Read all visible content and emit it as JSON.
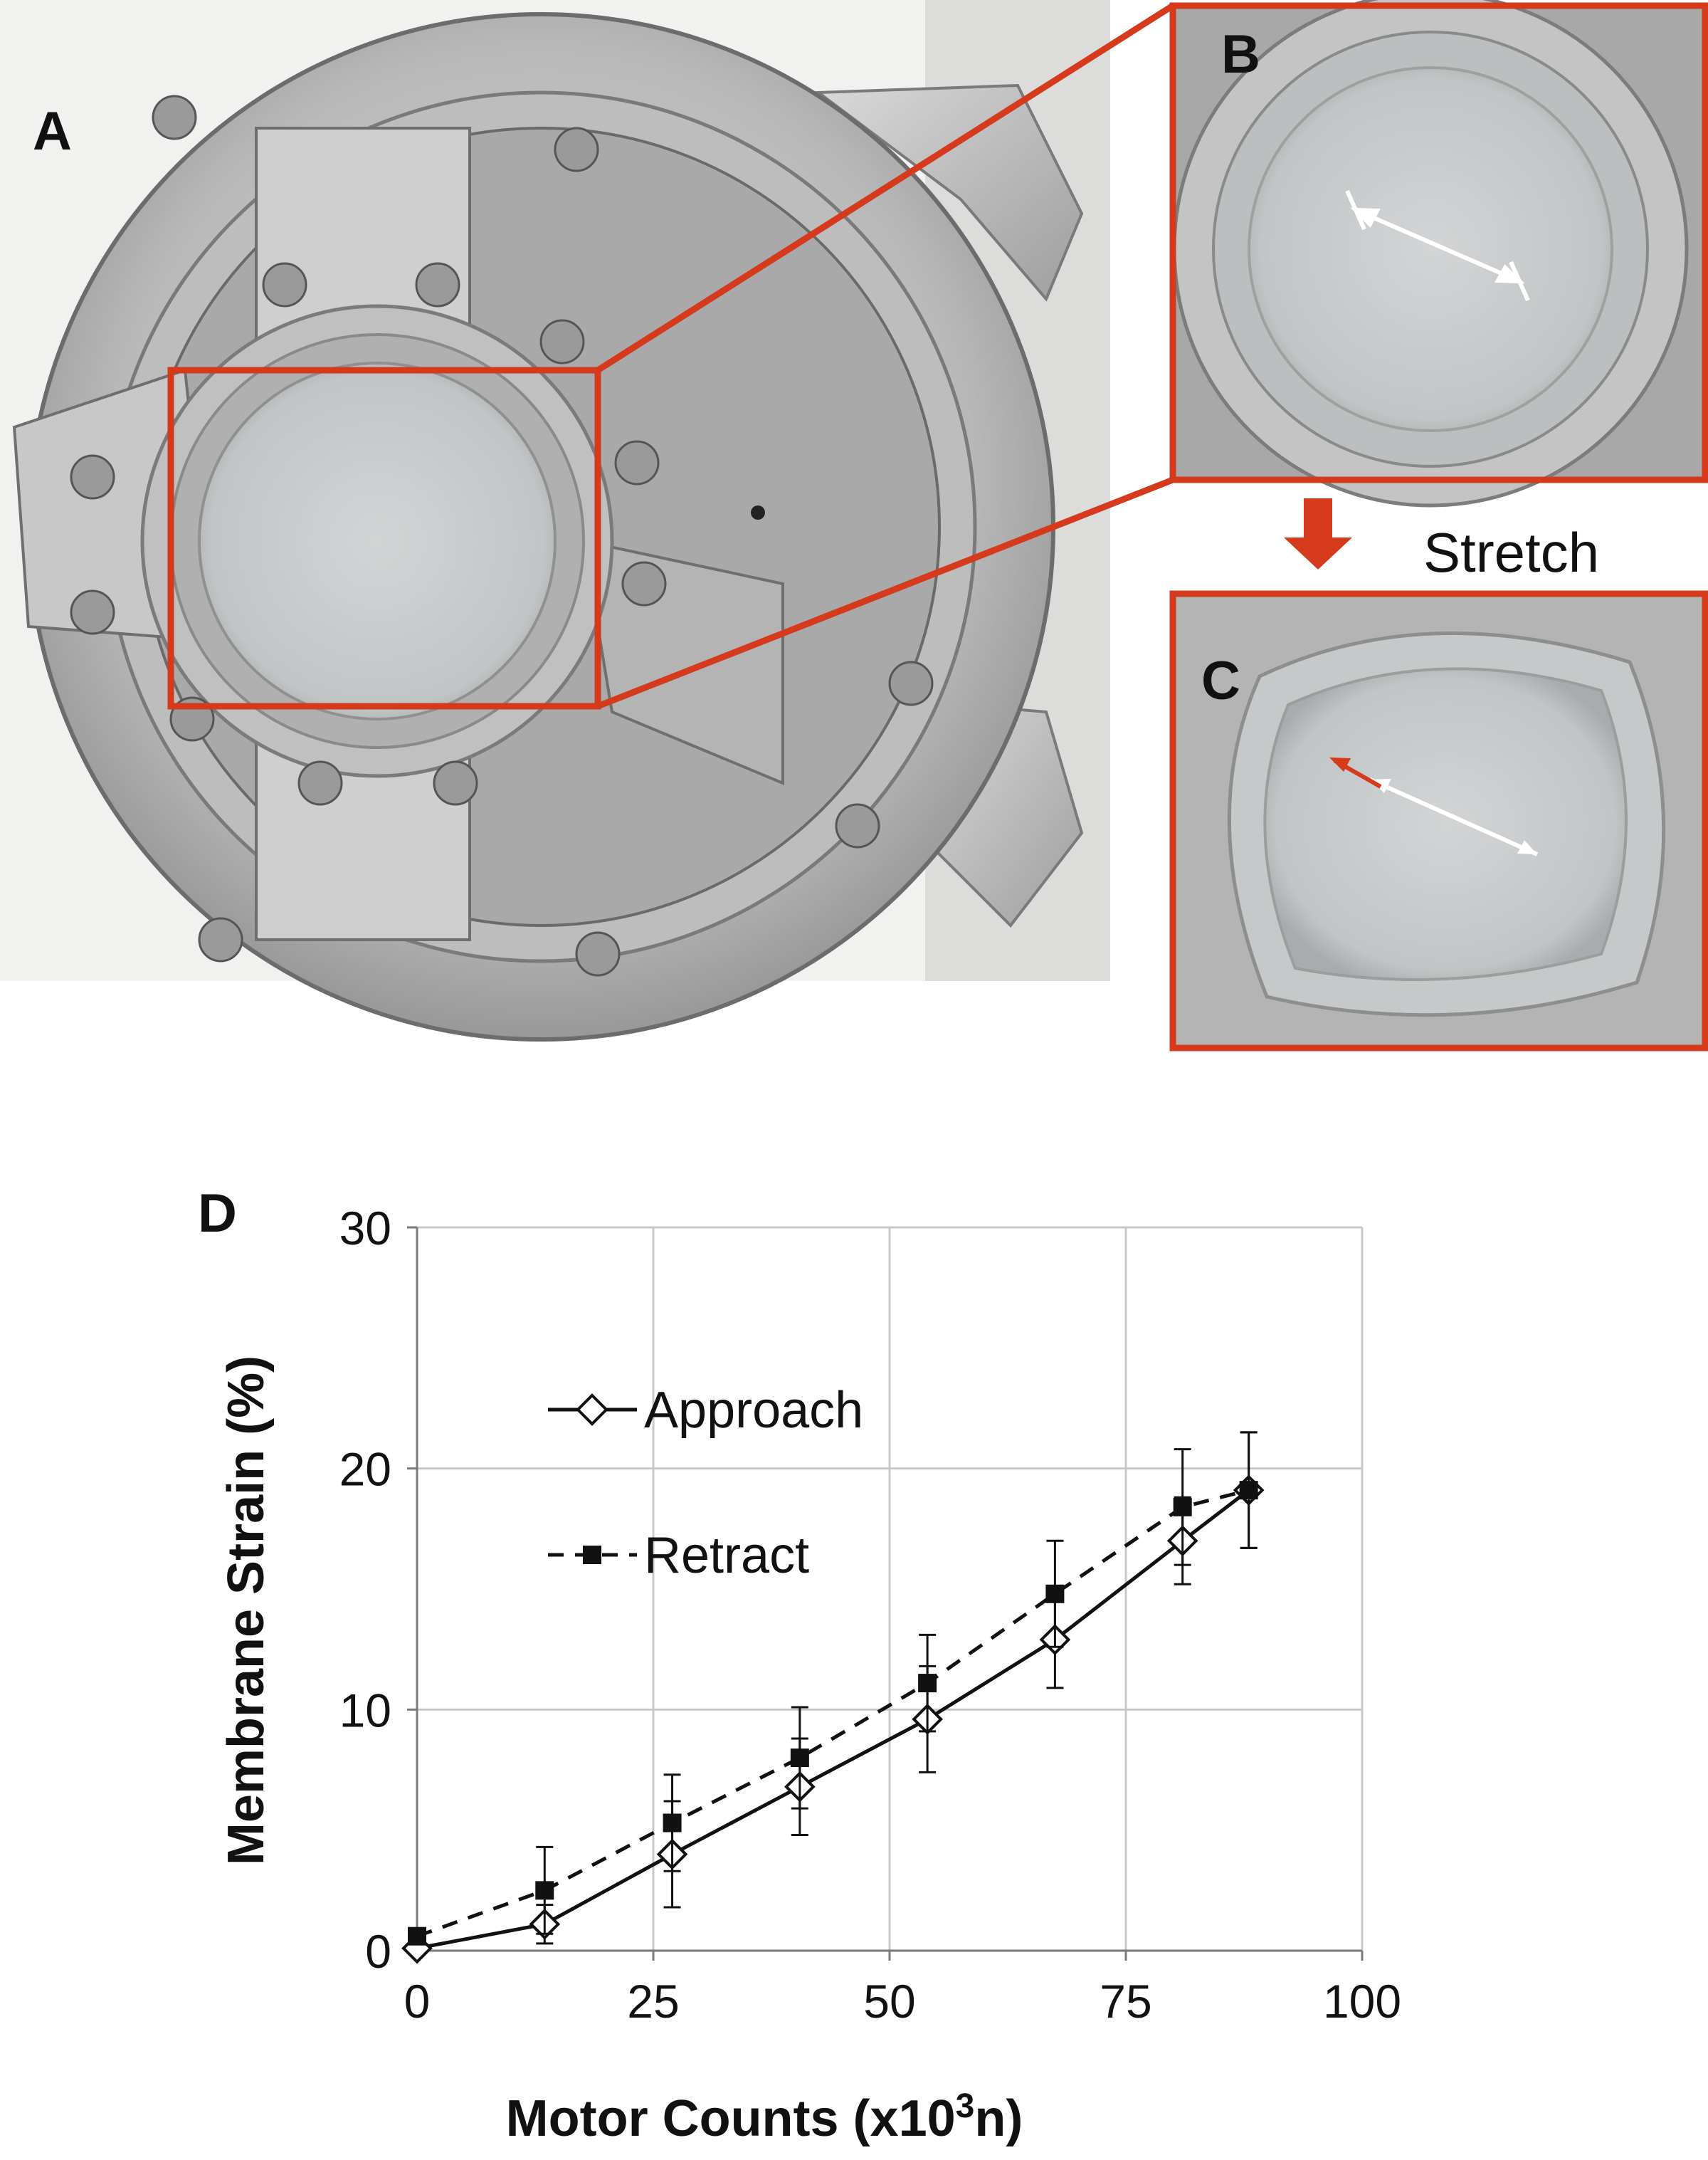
{
  "panels": {
    "a_label": "A",
    "b_label": "B",
    "c_label": "C",
    "d_label": "D",
    "stretch_label": "Stretch"
  },
  "colors": {
    "highlight": "#d63a1c",
    "steel_dark": "#6f6f6f",
    "steel_light": "#c9c9c9",
    "membrane": "#c7cacb"
  },
  "chart_data": {
    "type": "line",
    "xlabel_main": "Motor Counts (x10",
    "xlabel_sup": "3",
    "xlabel_tail": "n)",
    "ylabel": "Membrane Strain (%)",
    "xlim": [
      0,
      100
    ],
    "ylim": [
      0,
      30
    ],
    "x_ticks": [
      0,
      25,
      50,
      75,
      100
    ],
    "y_ticks": [
      0,
      10,
      20,
      30
    ],
    "x_tick_labels": [
      "0",
      "25",
      "50",
      "75",
      "100"
    ],
    "y_tick_labels": [
      "0",
      "10",
      "20",
      "30"
    ],
    "grid": true,
    "legend": "upper-left",
    "series": [
      {
        "name": "Approach",
        "style": "solid",
        "marker": "open-diamond",
        "x": [
          0,
          13.5,
          27,
          40.5,
          54,
          67.5,
          81,
          88
        ],
        "y": [
          0.1,
          1.1,
          4.0,
          6.8,
          9.6,
          12.9,
          17.0,
          19.1
        ],
        "err": [
          0,
          0.8,
          2.2,
          2.0,
          2.2,
          2.0,
          1.8,
          2.4
        ]
      },
      {
        "name": "Retract",
        "style": "dashed",
        "marker": "filled-square",
        "x": [
          0,
          13.5,
          27,
          40.5,
          54,
          67.5,
          81,
          88
        ],
        "y": [
          0.6,
          2.5,
          5.3,
          8.0,
          11.1,
          14.8,
          18.4,
          19.1
        ],
        "err": [
          0,
          1.8,
          2.0,
          2.1,
          2.0,
          2.2,
          2.4,
          2.4
        ]
      }
    ]
  }
}
